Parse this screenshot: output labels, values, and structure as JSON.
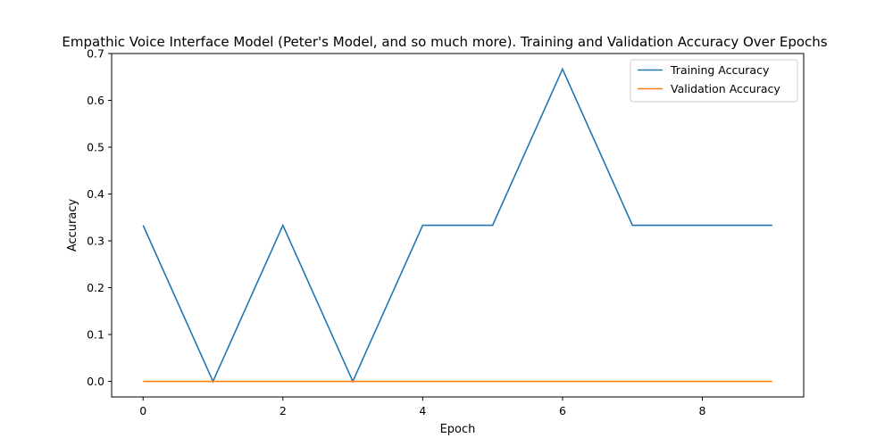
{
  "chart_data": {
    "type": "line",
    "title": "Empathic Voice Interface Model (Peter's Model, and so much more). Training and Validation Accuracy Over Epochs",
    "xlabel": "Epoch",
    "ylabel": "Accuracy",
    "x": [
      0,
      1,
      2,
      3,
      4,
      5,
      6,
      7,
      8,
      9
    ],
    "xlim": [
      -0.45,
      9.45
    ],
    "ylim": [
      -0.0333,
      0.7
    ],
    "xticks": [
      0,
      2,
      4,
      6,
      8
    ],
    "yticks": [
      0.0,
      0.1,
      0.2,
      0.3,
      0.4,
      0.5,
      0.6,
      0.7
    ],
    "xtick_labels": [
      "0",
      "2",
      "4",
      "6",
      "8"
    ],
    "ytick_labels": [
      "0.0",
      "0.1",
      "0.2",
      "0.3",
      "0.4",
      "0.5",
      "0.6",
      "0.7"
    ],
    "grid": false,
    "legend_position": "top-right",
    "series": [
      {
        "name": "Training Accuracy",
        "color": "#1f77b4",
        "values": [
          0.3333,
          0.0,
          0.3333,
          0.0,
          0.3333,
          0.3333,
          0.6667,
          0.3333,
          0.3333,
          0.3333
        ]
      },
      {
        "name": "Validation Accuracy",
        "color": "#ff7f0e",
        "values": [
          0.0,
          0.0,
          0.0,
          0.0,
          0.0,
          0.0,
          0.0,
          0.0,
          0.0,
          0.0
        ]
      }
    ]
  }
}
